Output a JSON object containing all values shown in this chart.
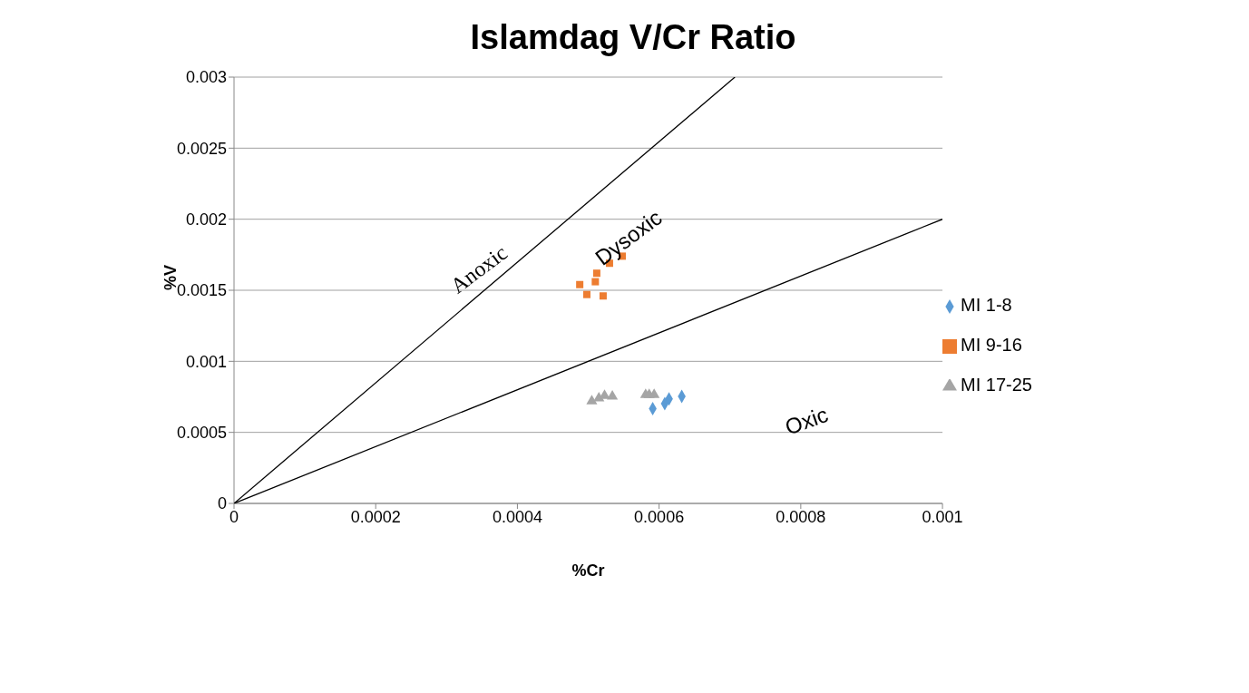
{
  "chart_data": {
    "type": "scatter",
    "title": "Islamdag V/Cr Ratio",
    "xlabel": "%Cr",
    "ylabel": "%V",
    "xlim": [
      0,
      0.001
    ],
    "xticks": [
      0,
      0.0002,
      0.0004,
      0.0006,
      0.0008,
      0.001
    ],
    "ylim": [
      0,
      0.003
    ],
    "yticks": [
      0,
      0.0005,
      0.001,
      0.0015,
      0.002,
      0.0025,
      0.003
    ],
    "grid": "y",
    "legend": "right",
    "series": [
      {
        "name": "MI 1-8",
        "color": "#5b9bd5",
        "marker": "diamond",
        "x": [
          0.000591,
          0.000608,
          0.000614,
          0.000632
        ],
        "values": [
          0.000667,
          0.000702,
          0.000736,
          0.000753
        ]
      },
      {
        "name": "MI 9-16",
        "color": "#ed7d31",
        "marker": "square",
        "x": [
          0.000488,
          0.000498,
          0.000512,
          0.00051,
          0.000521,
          0.00053,
          0.000548
        ],
        "values": [
          0.00154,
          0.00147,
          0.00162,
          0.00156,
          0.00146,
          0.00169,
          0.00174
        ]
      },
      {
        "name": "MI 17-25",
        "color": "#a5a5a5",
        "marker": "triangle",
        "x": [
          0.000505,
          0.000515,
          0.000523,
          0.000534,
          0.000581,
          0.000586,
          0.000593
        ],
        "values": [
          0.000719,
          0.000741,
          0.000758,
          0.000753,
          0.000765,
          0.000764,
          0.000764
        ]
      },
      {
        "type": "line",
        "color": "#000000",
        "marker": "none",
        "x": [
          0,
          0.000707
        ],
        "values": [
          0,
          0.003
        ]
      },
      {
        "type": "line",
        "color": "#000000",
        "marker": "none",
        "x": [
          0,
          0.001
        ],
        "values": [
          0,
          0.002
        ]
      }
    ],
    "annotations": [
      "Anoxic",
      "Dysoxic",
      "Oxic"
    ]
  }
}
